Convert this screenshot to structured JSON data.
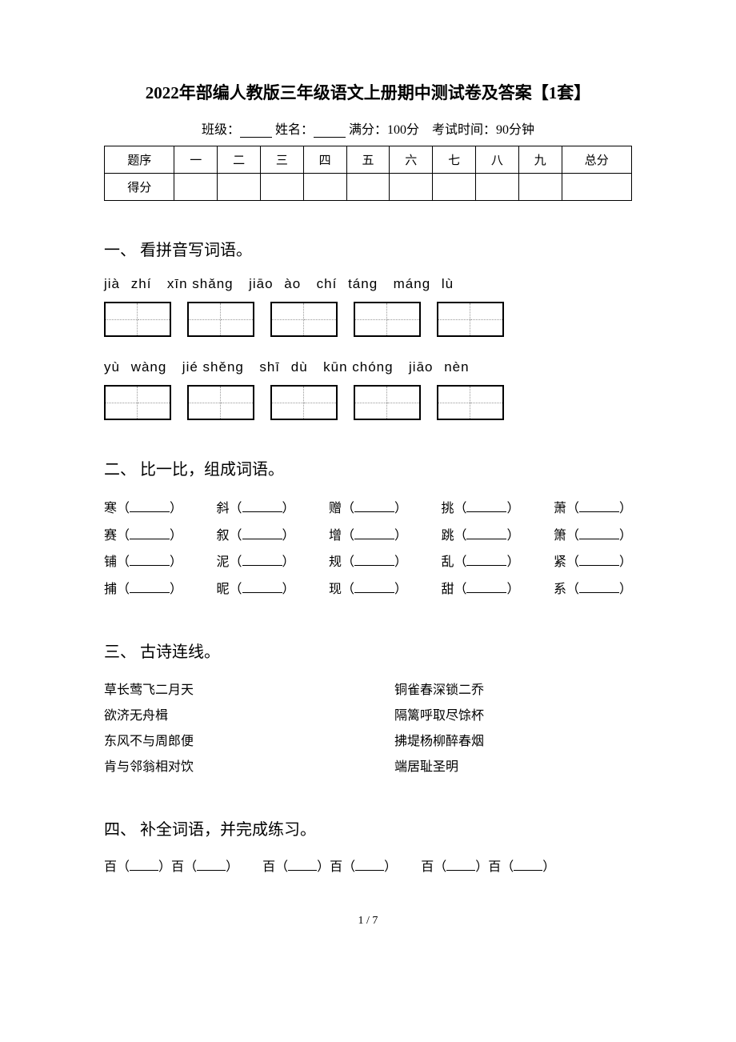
{
  "title": "2022年部编人教版三年级语文上册期中测试卷及答案【1套】",
  "meta": {
    "class_label": "班级：",
    "name_label": "姓名：",
    "fullscore_label": "满分：100分",
    "time_label": "考试时间：90分钟"
  },
  "score_table": {
    "headers": [
      "题序",
      "一",
      "二",
      "三",
      "四",
      "五",
      "六",
      "七",
      "八",
      "九",
      "总分"
    ],
    "row_label": "得分"
  },
  "sections": {
    "s1": {
      "heading": "一、 看拼音写词语。"
    },
    "s2": {
      "heading": "二、 比一比，组成词语。"
    },
    "s3": {
      "heading": "三、 古诗连线。"
    },
    "s4": {
      "heading": "四、 补全词语，并完成练习。"
    }
  },
  "pinyin": {
    "row1": [
      "jià",
      "zhí",
      "xīn shǎng",
      "jiāo",
      "ào",
      "chí",
      "táng",
      "máng",
      "lù"
    ],
    "row2": [
      "yù",
      "wàng",
      "jié shěng",
      "shī",
      "dù",
      "kūn chóng",
      "jiāo",
      "nèn"
    ]
  },
  "compare": {
    "rows": [
      [
        "寒",
        "斜",
        "赠",
        "挑",
        "萧"
      ],
      [
        "赛",
        "叙",
        "增",
        "跳",
        "箫"
      ],
      [
        "铺",
        "泥",
        "规",
        "乱",
        "紧"
      ],
      [
        "捕",
        "昵",
        "现",
        "甜",
        "系"
      ]
    ]
  },
  "poems": {
    "left": [
      "草长莺飞二月天",
      "欲济无舟楫",
      "东风不与周郎便",
      "肯与邻翁相对饮"
    ],
    "right": [
      "铜雀春深锁二乔",
      "隔篱呼取尽馀杯",
      "拂堤杨柳醉春烟",
      "端居耻圣明"
    ]
  },
  "idiom": {
    "char": "百"
  },
  "page_number": "1 / 7",
  "colors": {
    "text": "#000000",
    "background": "#ffffff",
    "dotted": "#999999"
  }
}
